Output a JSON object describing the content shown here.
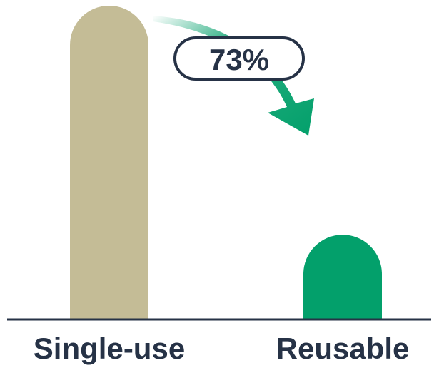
{
  "chart_data": {
    "type": "bar",
    "categories": [
      "Single-use",
      "Reusable"
    ],
    "values": [
      100,
      27
    ],
    "colors": [
      "#c4bc96",
      "#03a06b"
    ],
    "ylim": [
      0,
      100
    ],
    "annotation": {
      "label": "73%",
      "from": "Single-use",
      "to": "Reusable",
      "arrow_color": "#03a06b",
      "text_color": "#263246"
    },
    "axis_color": "#263246",
    "grid": false
  }
}
